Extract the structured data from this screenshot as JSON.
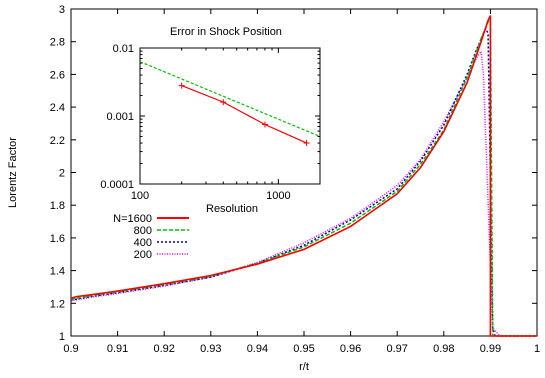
{
  "colors": {
    "n1600": "#ff0000",
    "n800": "#00c000",
    "n400": "#0000c0",
    "n200": "#ff00ff",
    "error_lower": "#ff0000",
    "error_upper": "#00c000",
    "frame": "#000000"
  },
  "chart_data": [
    {
      "type": "line",
      "title": "",
      "xlabel": "r/t",
      "ylabel": "Lorentz Factor",
      "xlim": [
        0.9,
        1.0
      ],
      "ylim": [
        1.0,
        3.0
      ],
      "x_ticks": [
        "0.9",
        "0.91",
        "0.92",
        "0.93",
        "0.94",
        "0.95",
        "0.96",
        "0.97",
        "0.98",
        "0.99",
        "1"
      ],
      "y_ticks": [
        "1",
        "1.2",
        "1.4",
        "1.6",
        "1.8",
        "2",
        "2.2",
        "2.4",
        "2.6",
        "2.8",
        "3"
      ],
      "grid": false,
      "legend_position": "left-middle",
      "series": [
        {
          "name": "N=1600",
          "style": "solid",
          "x": [
            0.9,
            0.901,
            0.905,
            0.91,
            0.92,
            0.93,
            0.94,
            0.95,
            0.96,
            0.97,
            0.975,
            0.98,
            0.985,
            0.988,
            0.9895,
            0.99,
            0.99,
            0.9905,
            1.0
          ],
          "y": [
            1.23,
            1.24,
            1.255,
            1.275,
            1.32,
            1.37,
            1.44,
            1.53,
            1.67,
            1.87,
            2.03,
            2.25,
            2.55,
            2.8,
            2.93,
            2.96,
            1.0,
            1.0,
            1.0
          ]
        },
        {
          "name": "800",
          "style": "dashed",
          "x": [
            0.9,
            0.905,
            0.91,
            0.92,
            0.93,
            0.94,
            0.95,
            0.96,
            0.97,
            0.975,
            0.98,
            0.985,
            0.988,
            0.9895,
            0.99,
            0.9905,
            1.0
          ],
          "y": [
            1.225,
            1.25,
            1.27,
            1.315,
            1.365,
            1.445,
            1.545,
            1.69,
            1.885,
            2.05,
            2.26,
            2.58,
            2.82,
            2.92,
            2.95,
            1.0,
            1.0
          ]
        },
        {
          "name": "400",
          "style": "dotted",
          "x": [
            0.9,
            0.905,
            0.91,
            0.92,
            0.93,
            0.94,
            0.95,
            0.96,
            0.97,
            0.975,
            0.98,
            0.985,
            0.987,
            0.989,
            0.9895,
            0.9905,
            0.991,
            1.0
          ],
          "y": [
            1.22,
            1.245,
            1.265,
            1.31,
            1.36,
            1.445,
            1.555,
            1.71,
            1.9,
            2.07,
            2.29,
            2.6,
            2.75,
            2.88,
            2.85,
            1.05,
            1.0,
            1.0
          ]
        },
        {
          "name": "200",
          "style": "dotted-fine",
          "x": [
            0.9,
            0.905,
            0.91,
            0.92,
            0.93,
            0.94,
            0.95,
            0.96,
            0.97,
            0.975,
            0.98,
            0.985,
            0.987,
            0.988,
            0.9885,
            0.9905,
            0.992,
            1.0
          ],
          "y": [
            1.215,
            1.24,
            1.26,
            1.305,
            1.36,
            1.45,
            1.57,
            1.72,
            1.92,
            2.08,
            2.31,
            2.58,
            2.7,
            2.74,
            2.6,
            1.05,
            1.0,
            1.0
          ]
        }
      ]
    },
    {
      "type": "line",
      "title": "Error in Shock Position",
      "xlabel": "Resolution",
      "ylabel": "",
      "x_scale": "log",
      "y_scale": "log",
      "xlim": [
        100,
        2000
      ],
      "ylim": [
        0.0001,
        0.01
      ],
      "x_ticks": [
        "100",
        "1000"
      ],
      "y_ticks": [
        "0.0001",
        "0.001",
        "0.01"
      ],
      "series": [
        {
          "style": "solid-with-markers",
          "x": [
            200,
            400,
            800,
            1600
          ],
          "y": [
            0.0028,
            0.0016,
            0.00075,
            0.0004
          ]
        },
        {
          "style": "dashed",
          "x": [
            100,
            2000
          ],
          "y": [
            0.0063,
            0.0005
          ]
        }
      ]
    }
  ]
}
